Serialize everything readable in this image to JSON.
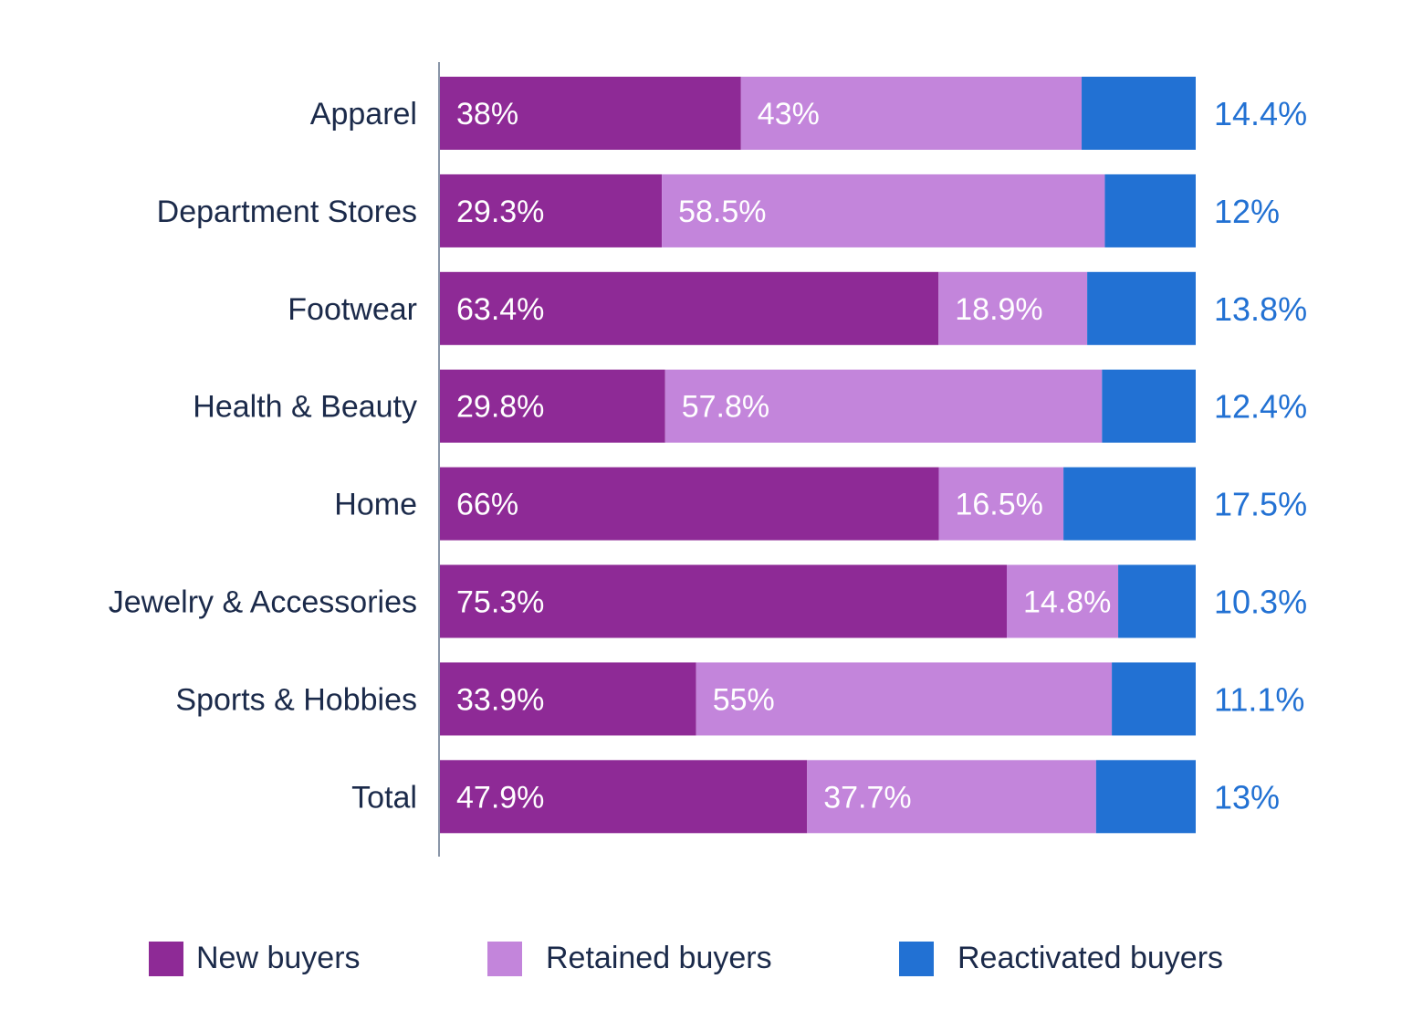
{
  "chart_data": {
    "type": "bar",
    "orientation": "horizontal",
    "stacked": true,
    "categories": [
      "Apparel",
      "Department Stores",
      "Footwear",
      "Health & Beauty",
      "Home",
      "Jewelry & Accessories",
      "Sports & Hobbies",
      "Total"
    ],
    "series": [
      {
        "name": "New buyers",
        "color": "#8e2a96",
        "values": [
          38,
          29.3,
          63.4,
          29.8,
          66,
          75.3,
          33.9,
          47.9
        ],
        "labels": [
          "38%",
          "29.3%",
          "63.4%",
          "29.8%",
          "66%",
          "75.3%",
          "33.9%",
          "47.9%"
        ]
      },
      {
        "name": "Retained buyers",
        "color": "#c385db",
        "values": [
          43,
          58.5,
          18.9,
          57.8,
          16.5,
          14.8,
          55,
          37.7
        ],
        "labels": [
          "43%",
          "58.5%",
          "18.9%",
          "57.8%",
          "16.5%",
          "14.8%",
          "55%",
          "37.7%"
        ]
      },
      {
        "name": "Reactivated buyers",
        "color": "#2271d3",
        "values": [
          14.4,
          12,
          13.8,
          12.4,
          17.5,
          10.3,
          11.1,
          13
        ],
        "labels": [
          "14.4%",
          "12%",
          "13.8%",
          "12.4%",
          "17.5%",
          "10.3%",
          "11.1%",
          "13%"
        ]
      }
    ],
    "title": "",
    "xlabel": "",
    "ylabel": "",
    "grid": false,
    "legend_placement": "bottom",
    "reactivated_label_placement": "right of bar"
  }
}
